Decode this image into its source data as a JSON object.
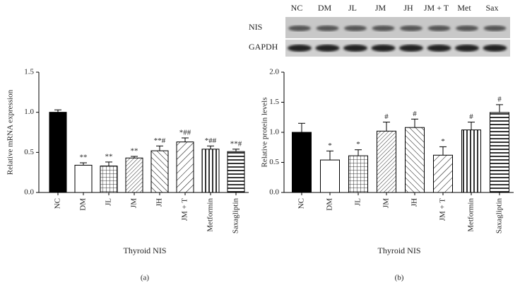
{
  "chart_data": [
    {
      "type": "bar",
      "panel": "(a)",
      "ylabel": "Relative mRNA expression",
      "xlabel": "Thyroid NIS",
      "categories": [
        "NC",
        "DM",
        "JL",
        "JM",
        "JH",
        "JM + T",
        "Metformin",
        "Saxagliptin"
      ],
      "values": [
        1.0,
        0.34,
        0.33,
        0.43,
        0.52,
        0.63,
        0.54,
        0.51
      ],
      "errors": [
        0.03,
        0.03,
        0.05,
        0.02,
        0.06,
        0.05,
        0.04,
        0.03
      ],
      "annotations": [
        null,
        "**",
        "**",
        "**",
        "**#",
        "*##",
        "*##",
        "**#"
      ],
      "color": "#000000",
      "ylim": [
        0,
        1.5
      ],
      "yticks": [
        {
          "value": 0,
          "label": "0.0"
        },
        {
          "value": 0.5,
          "label": "0.5"
        },
        {
          "value": 1,
          "label": "1.0"
        },
        {
          "value": 1.5,
          "label": "1.5"
        }
      ]
    },
    {
      "type": "bar",
      "panel": "(b)",
      "ylabel": "Relative protein levels",
      "xlabel": "Thyroid NIS",
      "categories": [
        "NC",
        "DM",
        "JL",
        "JM",
        "JH",
        "JM + T",
        "Metformin",
        "Saxagliptin"
      ],
      "values": [
        1.0,
        0.54,
        0.61,
        1.02,
        1.08,
        0.62,
        1.04,
        1.33
      ],
      "errors": [
        0.15,
        0.15,
        0.1,
        0.15,
        0.14,
        0.14,
        0.13,
        0.13
      ],
      "annotations": [
        null,
        "*",
        "*",
        "#",
        "#",
        "*",
        "#",
        "#"
      ],
      "color": "#000000",
      "ylim": [
        0,
        2
      ],
      "yticks": [
        {
          "value": 0,
          "label": "0.0"
        },
        {
          "value": 0.5,
          "label": "0.5"
        },
        {
          "value": 1,
          "label": "1.0"
        },
        {
          "value": 1.5,
          "label": "1.5"
        },
        {
          "value": 2,
          "label": "2.0"
        }
      ]
    }
  ],
  "blot": {
    "lanes": [
      "NC",
      "DM",
      "JL",
      "JM",
      "JH",
      "JM + T",
      "Met",
      "Sax"
    ],
    "rows": [
      "NIS",
      "GAPDH"
    ]
  }
}
